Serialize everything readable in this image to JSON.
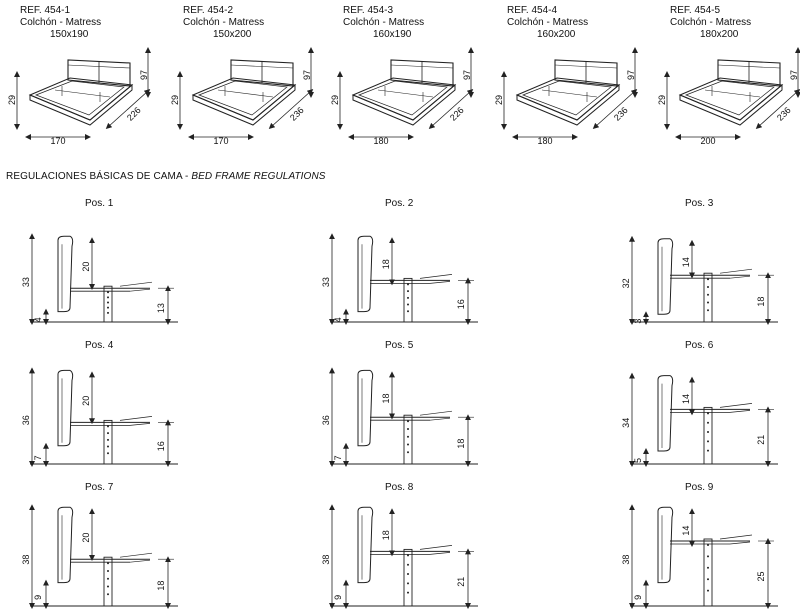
{
  "models": [
    {
      "ref": "REF. 454-1",
      "desc": "Colchón - Matress",
      "size": "150x190",
      "height": "29",
      "head_height": "97",
      "length": "226",
      "width": "170"
    },
    {
      "ref": "REF. 454-2",
      "desc": "Colchón - Matress",
      "size": "150x200",
      "height": "29",
      "head_height": "97",
      "length": "236",
      "width": "170"
    },
    {
      "ref": "REF. 454-3",
      "desc": "Colchón - Matress",
      "size": "160x190",
      "height": "29",
      "head_height": "97",
      "length": "226",
      "width": "180"
    },
    {
      "ref": "REF. 454-4",
      "desc": "Colchón - Matress",
      "size": "160x200",
      "height": "29",
      "head_height": "97",
      "length": "236",
      "width": "180"
    },
    {
      "ref": "REF. 454-5",
      "desc": "Colchón - Matress",
      "size": "180x200",
      "height": "29",
      "head_height": "97",
      "length": "236",
      "width": "200"
    }
  ],
  "section": {
    "title_es": "REGULACIONES BÁSICAS DE CAMA - ",
    "title_en": "BED FRAME REGULATIONS"
  },
  "positions": [
    {
      "label": "Pos. 1",
      "total": "33",
      "base": "4",
      "head": "20",
      "frame": "13"
    },
    {
      "label": "Pos. 2",
      "total": "33",
      "base": "4",
      "head": "18",
      "frame": "16"
    },
    {
      "label": "Pos. 3",
      "total": "32",
      "base": "3",
      "head": "14",
      "frame": "18"
    },
    {
      "label": "Pos. 4",
      "total": "36",
      "base": "7",
      "head": "20",
      "frame": "16"
    },
    {
      "label": "Pos. 5",
      "total": "36",
      "base": "7",
      "head": "18",
      "frame": "18"
    },
    {
      "label": "Pos. 6",
      "total": "34",
      "base": "5",
      "head": "14",
      "frame": "21"
    },
    {
      "label": "Pos. 7",
      "total": "38",
      "base": "9",
      "head": "20",
      "frame": "18"
    },
    {
      "label": "Pos. 8",
      "total": "38",
      "base": "9",
      "head": "18",
      "frame": "21"
    },
    {
      "label": "Pos. 9",
      "total": "38",
      "base": "9",
      "head": "14",
      "frame": "25"
    }
  ]
}
